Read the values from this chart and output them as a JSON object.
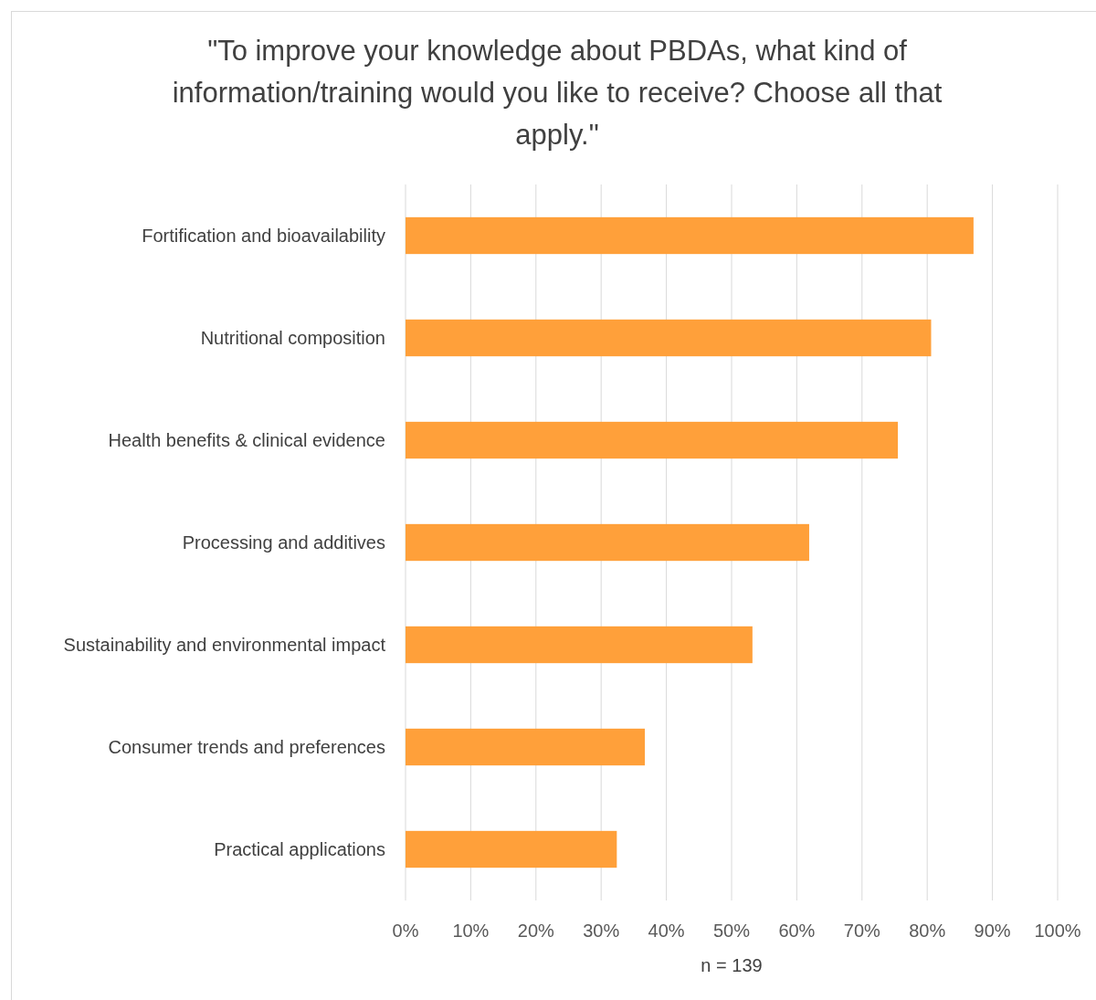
{
  "chart_data": {
    "type": "bar",
    "orientation": "horizontal",
    "title": "\"To improve your knowledge about PBDAs, what kind of information/training would you like to receive? Choose all that apply.\"",
    "xlabel": "n = 139",
    "categories": [
      "Fortification and bioavailability",
      "Nutritional composition",
      "Health benefits & clinical evidence",
      "Processing and additives",
      "Sustainability and environmental impact",
      "Consumer trends and preferences",
      "Practical applications"
    ],
    "values": [
      87.1,
      80.6,
      75.5,
      61.9,
      53.2,
      36.7,
      32.4
    ],
    "color": "#ffa03a",
    "xlim": [
      0,
      100
    ],
    "xticks": [
      {
        "value": 0,
        "label": "0%"
      },
      {
        "value": 10,
        "label": "10%"
      },
      {
        "value": 20,
        "label": "20%"
      },
      {
        "value": 30,
        "label": "30%"
      },
      {
        "value": 40,
        "label": "40%"
      },
      {
        "value": 50,
        "label": "50%"
      },
      {
        "value": 60,
        "label": "60%"
      },
      {
        "value": 70,
        "label": "70%"
      },
      {
        "value": 80,
        "label": "80%"
      },
      {
        "value": 90,
        "label": "90%"
      },
      {
        "value": 100,
        "label": "100%"
      }
    ],
    "grid": "x"
  }
}
